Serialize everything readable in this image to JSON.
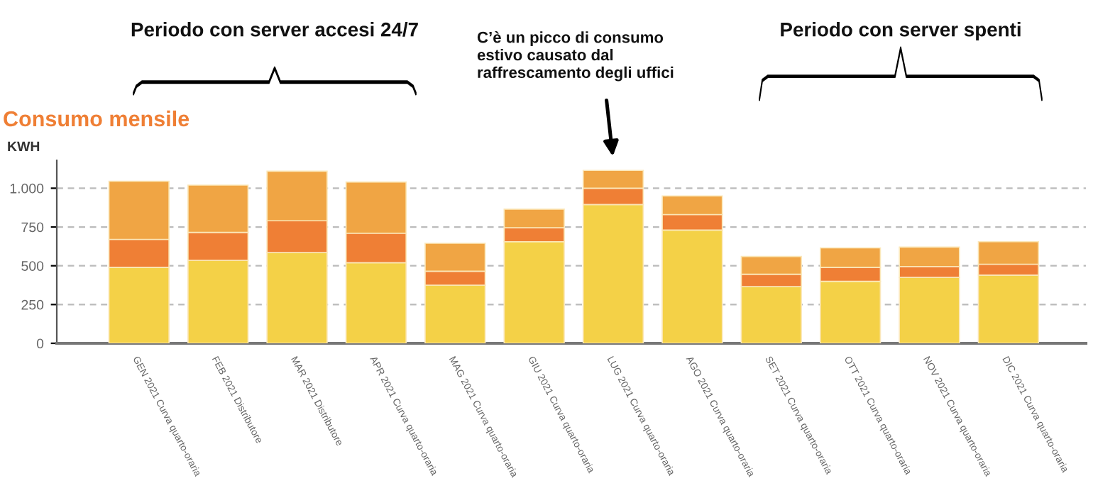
{
  "chart_data": {
    "type": "bar",
    "title": "Consumo mensile",
    "ylabel": "KWH",
    "categories": [
      "GEN 2021 Curva quarto-oraria",
      "FEB 2021 Distributore",
      "MAR 2021 Distributore",
      "APR 2021 Curva quarto-oraria",
      "MAG 2021 Curva quarto-oraria",
      "GIU 2021 Curva quarto-oraria",
      "LUG 2021 Curva quarto-oraria",
      "AGO 2021 Curva quarto-oraria",
      "SET 2021 Curva quarto-oraria",
      "OTT 2021 Curva quarto-oraria",
      "NOV 2021 Curva quarto-oraria",
      "DIC 2021 Curva quarto-oraria"
    ],
    "stacked": true,
    "series": [
      {
        "color": "#f4d147",
        "values": [
          490,
          535,
          585,
          520,
          375,
          655,
          895,
          730,
          365,
          400,
          425,
          440
        ]
      },
      {
        "color": "#ef7f35",
        "values": [
          180,
          180,
          205,
          190,
          90,
          90,
          105,
          100,
          80,
          90,
          70,
          70
        ]
      },
      {
        "color": "#f0a544",
        "values": [
          375,
          305,
          320,
          330,
          180,
          120,
          115,
          120,
          115,
          125,
          125,
          145
        ]
      }
    ],
    "ylim": [
      0,
      1180
    ],
    "yticks": [
      0,
      250,
      500,
      750,
      {
        "value": 1000,
        "label": "1.000"
      }
    ],
    "grid": "y",
    "legend": false,
    "annotations": [
      "Periodo con server accesi 24/7",
      "Periodo con server spenti",
      "C’è un picco di consumo\nestivo causato dal\nraffrescamento degli uffici"
    ]
  }
}
